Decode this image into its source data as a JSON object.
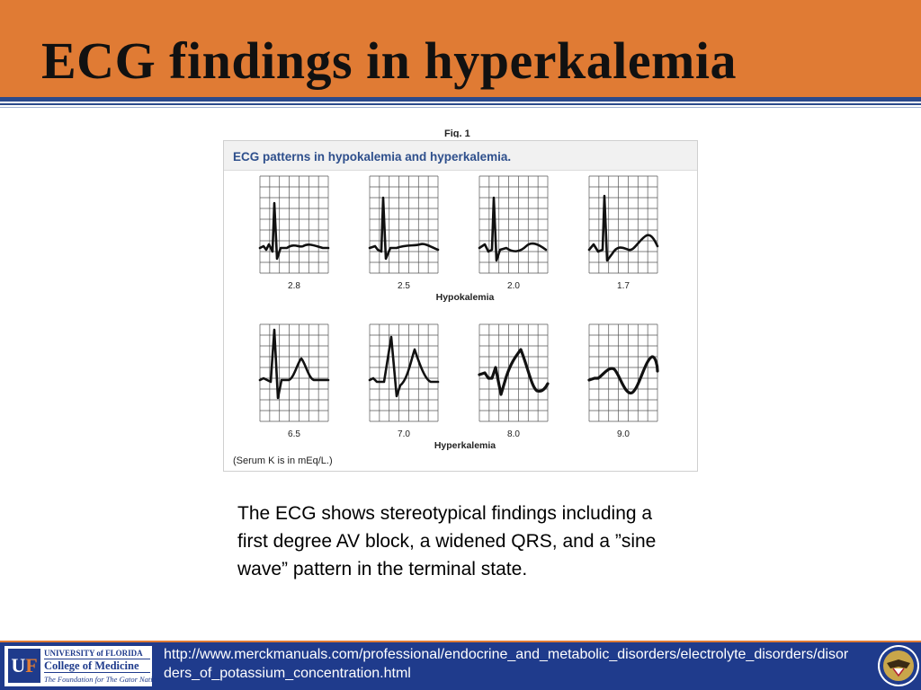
{
  "slide": {
    "title": "ECG findings in hyperkalemia",
    "caption": "The ECG shows stereotypical findings including a first degree AV block, a widened QRS, and a ”sine wave” pattern in the terminal state."
  },
  "figure": {
    "label": "Fig. 1",
    "title": "ECG patterns in hypokalemia and hyperkalemia.",
    "note": "(Serum K is in mEq/L.)",
    "rows": [
      {
        "group": "Hypokalemia",
        "values": [
          "2.8",
          "2.5",
          "2.0",
          "1.7"
        ]
      },
      {
        "group": "Hyperkalemia",
        "values": [
          "6.5",
          "7.0",
          "8.0",
          "9.0"
        ]
      }
    ]
  },
  "footer": {
    "url": "http://www.merckmanuals.com/professional/endocrine_and_metabolic_disorders/electrolyte_disorders/disorders_of_potassium_concentration.html",
    "logo": {
      "mark_u": "U",
      "mark_f": "F",
      "university": "UNIVERSITY of FLORIDA",
      "college": "College of Medicine",
      "tagline": "The Foundation for The Gator Nation"
    },
    "seal_icon": "va-seal-icon"
  },
  "colors": {
    "header": "#E07B34",
    "rule": "#2B4A8B",
    "footer": "#1F3B8C",
    "figure_title": "#2E4F8C"
  }
}
